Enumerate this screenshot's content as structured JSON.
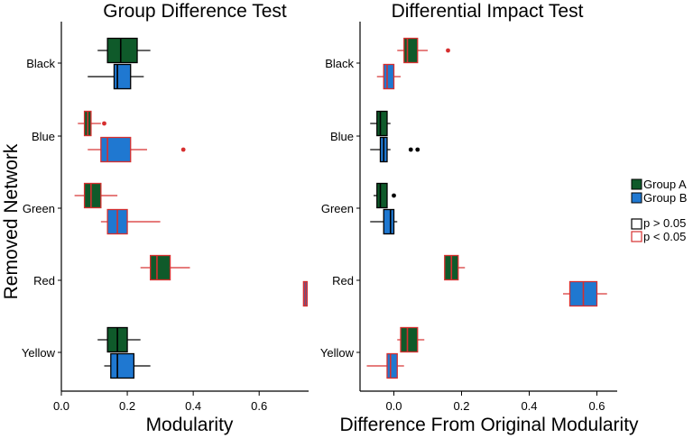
{
  "colors": {
    "group_a": "#0f5a2a",
    "group_b": "#1f78d1",
    "p_high": "#000000",
    "p_low": "#d62f2f"
  },
  "legend": {
    "groups": [
      "Group A",
      "Group B"
    ],
    "sig": [
      "p > 0.05",
      "p < 0.05"
    ]
  },
  "shared": {
    "ylabel": "Removed Network",
    "networks": [
      "Black",
      "Blue",
      "Green",
      "Red",
      "Yellow"
    ]
  },
  "chart_data": [
    {
      "type": "boxplot",
      "title": "Group Difference Test",
      "xlabel": "Modularity",
      "ylabel": "Removed Network",
      "xlim": [
        0.0,
        0.75
      ],
      "xticks": [
        0.0,
        0.2,
        0.4,
        0.6
      ],
      "xtick_labels": [
        "0.0",
        "0.2",
        "0.4",
        "0.6"
      ],
      "categories": [
        "Black",
        "Blue",
        "Green",
        "Red",
        "Yellow"
      ],
      "series": [
        {
          "name": "Group A",
          "boxes": [
            {
              "category": "Black",
              "whisker_low": 0.11,
              "q1": 0.14,
              "median": 0.18,
              "q3": 0.23,
              "whisker_high": 0.27,
              "outliers": [],
              "sig": "p > 0.05"
            },
            {
              "category": "Blue",
              "whisker_low": 0.05,
              "q1": 0.07,
              "median": 0.08,
              "q3": 0.09,
              "whisker_high": 0.12,
              "outliers": [
                0.13
              ],
              "sig": "p < 0.05"
            },
            {
              "category": "Green",
              "whisker_low": 0.04,
              "q1": 0.07,
              "median": 0.09,
              "q3": 0.12,
              "whisker_high": 0.17,
              "outliers": [],
              "sig": "p < 0.05"
            },
            {
              "category": "Red",
              "whisker_low": 0.24,
              "q1": 0.27,
              "median": 0.29,
              "q3": 0.33,
              "whisker_high": 0.39,
              "outliers": [],
              "sig": "p < 0.05"
            },
            {
              "category": "Yellow",
              "whisker_low": 0.11,
              "q1": 0.14,
              "median": 0.17,
              "q3": 0.2,
              "whisker_high": 0.24,
              "outliers": [],
              "sig": "p > 0.05"
            }
          ]
        },
        {
          "name": "Group B",
          "boxes": [
            {
              "category": "Black",
              "whisker_low": 0.08,
              "q1": 0.16,
              "median": 0.17,
              "q3": 0.21,
              "whisker_high": 0.25,
              "outliers": [],
              "sig": "p > 0.05"
            },
            {
              "category": "Blue",
              "whisker_low": 0.08,
              "q1": 0.12,
              "median": 0.14,
              "q3": 0.21,
              "whisker_high": 0.26,
              "outliers": [
                0.37
              ],
              "sig": "p < 0.05"
            },
            {
              "category": "Green",
              "whisker_low": 0.12,
              "q1": 0.14,
              "median": 0.17,
              "q3": 0.2,
              "whisker_high": 0.3,
              "outliers": [],
              "sig": "p < 0.05"
            },
            {
              "category": "Red",
              "whisker_low": 0.74,
              "q1": 0.74,
              "median": 0.74,
              "q3": 0.74,
              "whisker_high": 0.74,
              "outliers": [],
              "sig": "p < 0.05"
            },
            {
              "category": "Yellow",
              "whisker_low": 0.13,
              "q1": 0.15,
              "median": 0.17,
              "q3": 0.22,
              "whisker_high": 0.27,
              "outliers": [],
              "sig": "p > 0.05"
            }
          ]
        }
      ]
    },
    {
      "type": "boxplot",
      "title": "Differential Impact Test",
      "xlabel": "Difference From Original Modularity",
      "ylabel": "",
      "xlim": [
        -0.1,
        0.66
      ],
      "xticks": [
        0.0,
        0.2,
        0.4,
        0.6
      ],
      "xtick_labels": [
        "0.0",
        "0.2",
        "0.4",
        "0.6"
      ],
      "categories": [
        "Black",
        "Blue",
        "Green",
        "Red",
        "Yellow"
      ],
      "series": [
        {
          "name": "Group A",
          "boxes": [
            {
              "category": "Black",
              "whisker_low": 0.01,
              "q1": 0.03,
              "median": 0.04,
              "q3": 0.07,
              "whisker_high": 0.1,
              "outliers": [
                0.16
              ],
              "sig": "p < 0.05"
            },
            {
              "category": "Blue",
              "whisker_low": -0.07,
              "q1": -0.05,
              "median": -0.04,
              "q3": -0.02,
              "whisker_high": -0.01,
              "outliers": [],
              "sig": "p > 0.05"
            },
            {
              "category": "Green",
              "whisker_low": -0.06,
              "q1": -0.05,
              "median": -0.04,
              "q3": -0.02,
              "whisker_high": -0.02,
              "outliers": [
                0.0
              ],
              "sig": "p > 0.05"
            },
            {
              "category": "Red",
              "whisker_low": 0.15,
              "q1": 0.15,
              "median": 0.17,
              "q3": 0.19,
              "whisker_high": 0.21,
              "outliers": [],
              "sig": "p < 0.05"
            },
            {
              "category": "Yellow",
              "whisker_low": 0.01,
              "q1": 0.02,
              "median": 0.04,
              "q3": 0.07,
              "whisker_high": 0.09,
              "outliers": [],
              "sig": "p < 0.05"
            }
          ]
        },
        {
          "name": "Group B",
          "boxes": [
            {
              "category": "Black",
              "whisker_low": -0.05,
              "q1": -0.03,
              "median": -0.02,
              "q3": 0.0,
              "whisker_high": 0.02,
              "outliers": [],
              "sig": "p < 0.05"
            },
            {
              "category": "Blue",
              "whisker_low": -0.07,
              "q1": -0.04,
              "median": -0.03,
              "q3": -0.02,
              "whisker_high": -0.01,
              "outliers": [
                0.05,
                0.07
              ],
              "sig": "p > 0.05"
            },
            {
              "category": "Green",
              "whisker_low": -0.07,
              "q1": -0.03,
              "median": -0.01,
              "q3": 0.0,
              "whisker_high": 0.01,
              "outliers": [],
              "sig": "p > 0.05"
            },
            {
              "category": "Red",
              "whisker_low": 0.5,
              "q1": 0.52,
              "median": 0.56,
              "q3": 0.6,
              "whisker_high": 0.63,
              "outliers": [],
              "sig": "p < 0.05"
            },
            {
              "category": "Yellow",
              "whisker_low": -0.08,
              "q1": -0.02,
              "median": -0.01,
              "q3": 0.01,
              "whisker_high": 0.03,
              "outliers": [],
              "sig": "p < 0.05"
            }
          ]
        }
      ]
    }
  ]
}
